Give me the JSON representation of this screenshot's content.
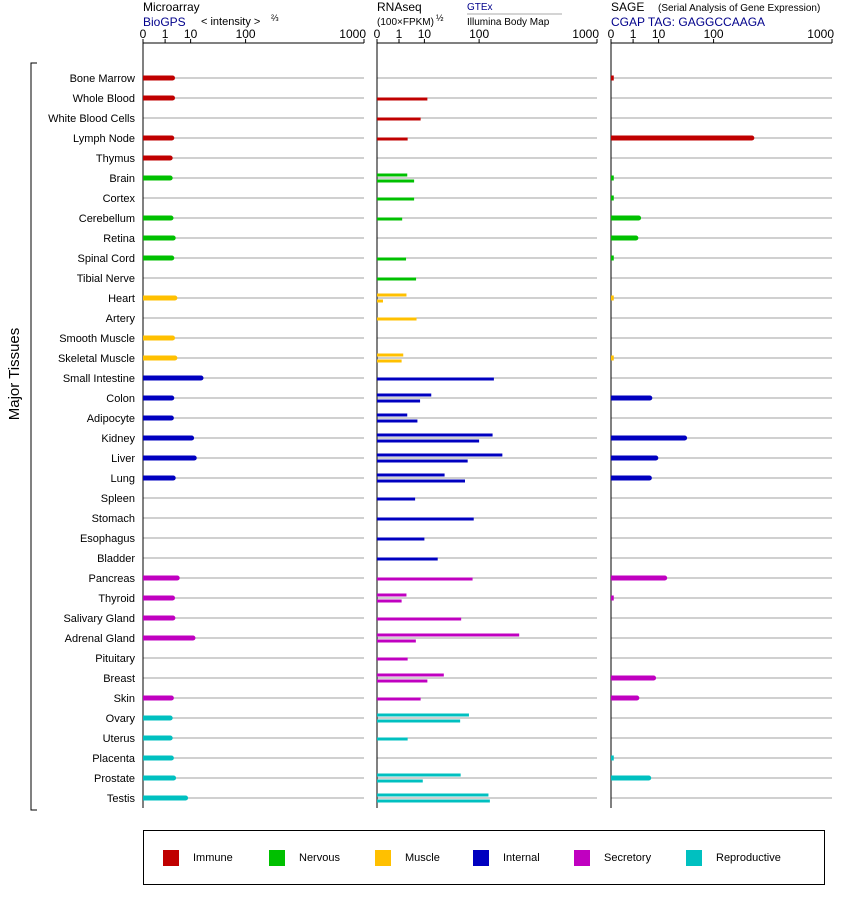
{
  "side_label": "Major Tissues",
  "scale_ticks": [
    "0",
    "1",
    "10",
    "100",
    "1000"
  ],
  "panels": [
    {
      "title": "Microarray",
      "subtitle": "BioGPS",
      "subtitle2": "< intensity >",
      "exponent": "⅔",
      "source_a": "",
      "source_b": ""
    },
    {
      "title": "RNAseq",
      "subtitle": "(100×FPKM)",
      "subtitle2": "",
      "exponent": "½",
      "source_a": "GTEx",
      "source_b": "Illumina Body Map"
    },
    {
      "title": "SAGE",
      "subtitle": "CGAP TAG: GAGGCCAAGA",
      "subtitle2": "",
      "exponent": "",
      "source_a": "",
      "source_b": "",
      "note": "(Serial Analysis of Gene Expression)"
    }
  ],
  "categories": {
    "immune": {
      "label": "Immune",
      "color": "#c00000"
    },
    "nervous": {
      "label": "Nervous",
      "color": "#00c000"
    },
    "muscle": {
      "label": "Muscle",
      "color": "#ffc000"
    },
    "internal": {
      "label": "Internal",
      "color": "#0000c0"
    },
    "secretory": {
      "label": "Secretory",
      "color": "#c000c0"
    },
    "reproductive": {
      "label": "Reproductive",
      "color": "#00c0c0"
    }
  },
  "legend_order": [
    "immune",
    "nervous",
    "muscle",
    "internal",
    "secretory",
    "reproductive"
  ],
  "chart_data": {
    "type": "bar",
    "orientation": "horizontal",
    "x_scale": "root-compressed (0, 1, 10, 100, 1000)",
    "xlim": [
      0,
      1000
    ],
    "grid": true,
    "legend_placement": "bottom",
    "tissues": [
      {
        "name": "Bone Marrow",
        "category": "immune",
        "microarray": 2.9,
        "rnaseq": [],
        "sage": 0.01
      },
      {
        "name": "Whole Blood",
        "category": "immune",
        "microarray": 2.9,
        "rnaseq": [
          12
        ],
        "sage": null
      },
      {
        "name": "White Blood Cells",
        "category": "immune",
        "microarray": null,
        "rnaseq": [
          7.8
        ],
        "sage": null
      },
      {
        "name": "Lymph Node",
        "category": "immune",
        "microarray": 2.7,
        "rnaseq": [
          2.7
        ],
        "sage": 270
      },
      {
        "name": "Thymus",
        "category": "immune",
        "microarray": 2.3,
        "rnaseq": [],
        "sage": null
      },
      {
        "name": "Brain",
        "category": "nervous",
        "microarray": 2.3,
        "rnaseq": [
          2.6,
          4.8
        ],
        "sage": 0.01
      },
      {
        "name": "Cortex",
        "category": "nervous",
        "microarray": null,
        "rnaseq": [
          4.8
        ],
        "sage": 0.01
      },
      {
        "name": "Cerebellum",
        "category": "nervous",
        "microarray": 2.5,
        "rnaseq": [
          1.5
        ],
        "sage": 2.4
      },
      {
        "name": "Retina",
        "category": "nervous",
        "microarray": 3.1,
        "rnaseq": [],
        "sage": 1.8
      },
      {
        "name": "Spinal Cord",
        "category": "nervous",
        "microarray": 2.7,
        "rnaseq": [
          2.3
        ],
        "sage": 0.01
      },
      {
        "name": "Tibial Nerve",
        "category": "nervous",
        "microarray": null,
        "rnaseq": [
          5.6
        ],
        "sage": null
      },
      {
        "name": "Heart",
        "category": "muscle",
        "microarray": 3.6,
        "rnaseq": [
          2.4,
          0.02
        ],
        "sage": 0.01
      },
      {
        "name": "Artery",
        "category": "muscle",
        "microarray": null,
        "rnaseq": [
          5.8
        ],
        "sage": null
      },
      {
        "name": "Smooth Muscle",
        "category": "muscle",
        "microarray": 2.9,
        "rnaseq": [],
        "sage": null
      },
      {
        "name": "Skeletal Muscle",
        "category": "muscle",
        "microarray": 3.6,
        "rnaseq": [
          1.7,
          1.4
        ],
        "sage": 0.01
      },
      {
        "name": "Small Intestine",
        "category": "internal",
        "microarray": 20,
        "rnaseq": [
          150
        ],
        "sage": null
      },
      {
        "name": "Colon",
        "category": "internal",
        "microarray": 2.7,
        "rnaseq": [
          15,
          7.5
        ],
        "sage": 6.3
      },
      {
        "name": "Adipocyte",
        "category": "internal",
        "microarray": 2.6,
        "rnaseq": [
          2.6,
          6.2
        ],
        "sage": null
      },
      {
        "name": "Kidney",
        "category": "internal",
        "microarray": 12,
        "rnaseq": [
          145,
          100
        ],
        "sage": 40
      },
      {
        "name": "Liver",
        "category": "internal",
        "microarray": 14,
        "rnaseq": [
          185,
          70
        ],
        "sage": 9.5
      },
      {
        "name": "Lung",
        "category": "internal",
        "microarray": 3.1,
        "rnaseq": [
          29,
          64
        ],
        "sage": 6.1
      },
      {
        "name": "Spleen",
        "category": "internal",
        "microarray": null,
        "rnaseq": [
          5.2
        ],
        "sage": null
      },
      {
        "name": "Stomach",
        "category": "internal",
        "microarray": null,
        "rnaseq": [
          85
        ],
        "sage": null
      },
      {
        "name": "Esophagus",
        "category": "internal",
        "microarray": null,
        "rnaseq": [
          10
        ],
        "sage": null
      },
      {
        "name": "Bladder",
        "category": "internal",
        "microarray": null,
        "rnaseq": [
          21
        ],
        "sage": null
      },
      {
        "name": "Pancreas",
        "category": "secretory",
        "microarray": 4.4,
        "rnaseq": [
          82
        ],
        "sage": 16
      },
      {
        "name": "Thyroid",
        "category": "secretory",
        "microarray": 2.9,
        "rnaseq": [
          2.4,
          1.4
        ],
        "sage": 0.01
      },
      {
        "name": "Salivary Gland",
        "category": "secretory",
        "microarray": 3.0,
        "rnaseq": [
          56
        ],
        "sage": null
      },
      {
        "name": "Adrenal Gland",
        "category": "secretory",
        "microarray": 13,
        "rnaseq": [
          270,
          5.5
        ],
        "sage": null
      },
      {
        "name": "Pituitary",
        "category": "secretory",
        "microarray": null,
        "rnaseq": [
          2.7
        ],
        "sage": null
      },
      {
        "name": "Breast",
        "category": "secretory",
        "microarray": null,
        "rnaseq": [
          28,
          12
        ],
        "sage": 8.2
      },
      {
        "name": "Skin",
        "category": "secretory",
        "microarray": 2.6,
        "rnaseq": [
          7.8
        ],
        "sage": 2.0
      },
      {
        "name": "Ovary",
        "category": "reproductive",
        "microarray": 2.3,
        "rnaseq": [
          73,
          54
        ],
        "sage": null
      },
      {
        "name": "Uterus",
        "category": "reproductive",
        "microarray": 2.3,
        "rnaseq": [
          2.7
        ],
        "sage": null
      },
      {
        "name": "Placenta",
        "category": "reproductive",
        "microarray": 2.6,
        "rnaseq": [],
        "sage": 0.01
      },
      {
        "name": "Prostate",
        "category": "reproductive",
        "microarray": 3.2,
        "rnaseq": [
          55,
          9
        ],
        "sage": 5.8
      },
      {
        "name": "Testis",
        "category": "reproductive",
        "microarray": 8.2,
        "rnaseq": [
          130,
          135
        ],
        "sage": null
      }
    ]
  }
}
